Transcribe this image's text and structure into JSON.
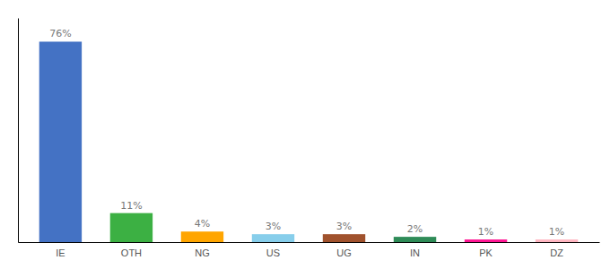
{
  "chart_data": {
    "type": "bar",
    "categories": [
      "IE",
      "OTH",
      "NG",
      "US",
      "UG",
      "IN",
      "PK",
      "DZ"
    ],
    "values": [
      76,
      11,
      4,
      3,
      3,
      2,
      1,
      1
    ],
    "value_labels": [
      "76%",
      "11%",
      "4%",
      "3%",
      "3%",
      "2%",
      "1%",
      "1%"
    ],
    "colors": [
      "#4472C4",
      "#3CB043",
      "#FFA500",
      "#87CEEB",
      "#A0522D",
      "#2E8B57",
      "#FF1493",
      "#FFB6C1"
    ],
    "ylim": [
      0,
      85
    ],
    "data_labels": true,
    "tick_labels": "x",
    "grid": false
  }
}
